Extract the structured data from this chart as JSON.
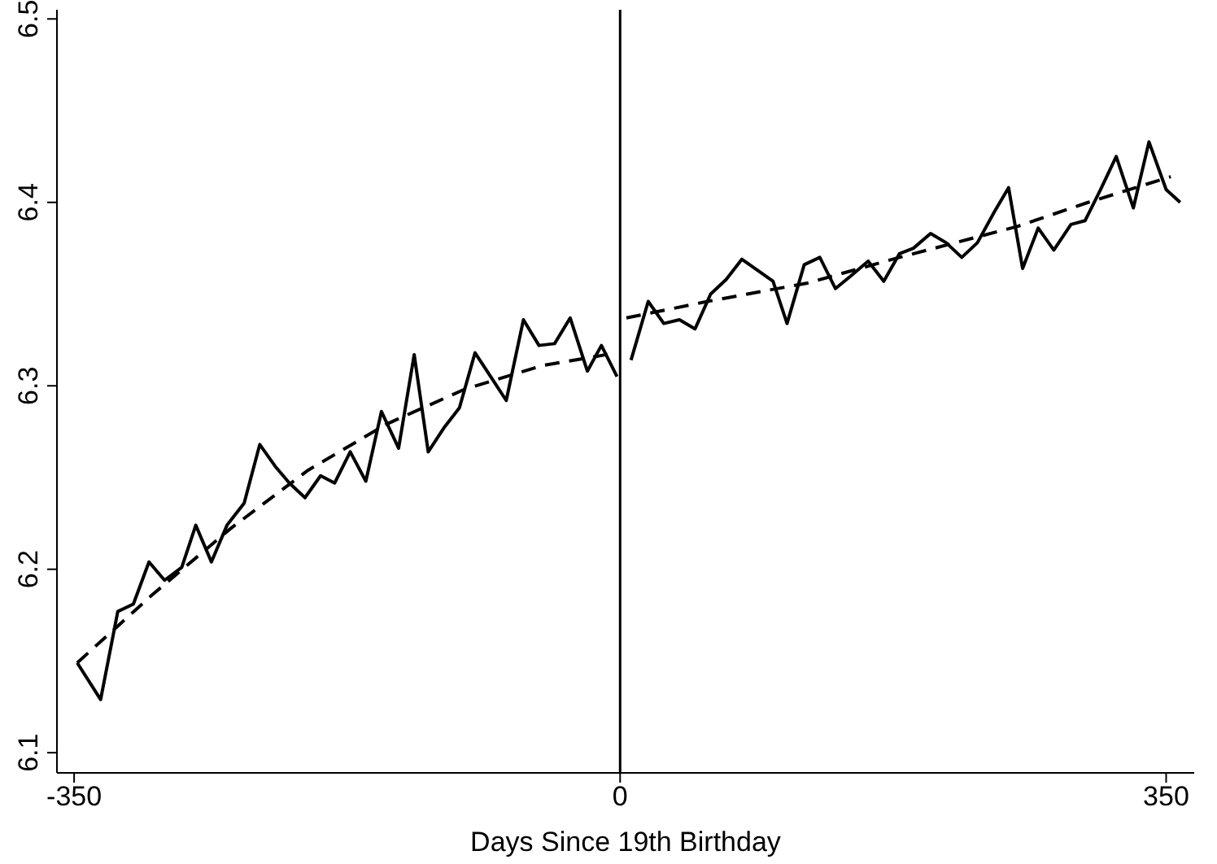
{
  "chart_data": {
    "type": "line",
    "xlabel": "Days Since 19th Birthday",
    "xlim": [
      -361,
      368
    ],
    "ylim": [
      6.089,
      6.505
    ],
    "xticks": [
      -350,
      0,
      350
    ],
    "yticks": [
      6.1,
      6.2,
      6.3,
      6.4,
      6.5
    ],
    "grid": false,
    "marker": "none",
    "ref_lines": [
      {
        "axis": "x",
        "value": 0,
        "color": "#000000",
        "line_style": "solid"
      }
    ],
    "series": [
      {
        "color": "#000000",
        "line_style": "solid",
        "x": [
          -348,
          -333,
          -322,
          -312,
          -302,
          -292,
          -281,
          -272,
          -262,
          -252,
          -241,
          -231,
          -221,
          -212,
          -202,
          -192,
          -183,
          -173,
          -163,
          -153,
          -142,
          -132,
          -123,
          -113,
          -103,
          -93,
          -83,
          -73,
          -62,
          -52,
          -42,
          -32,
          -21,
          -12,
          -2
        ],
        "values": [
          6.149,
          6.129,
          6.177,
          6.181,
          6.204,
          6.194,
          6.201,
          6.224,
          6.204,
          6.224,
          6.236,
          6.268,
          6.256,
          6.247,
          6.239,
          6.251,
          6.247,
          6.264,
          6.248,
          6.286,
          6.266,
          6.317,
          6.264,
          6.277,
          6.288,
          6.318,
          6.305,
          6.292,
          6.336,
          6.322,
          6.323,
          6.337,
          6.308,
          6.322,
          6.305
        ]
      },
      {
        "color": "#000000",
        "line_style": "solid",
        "x": [
          7,
          18,
          28,
          38,
          48,
          58,
          68,
          78,
          88,
          98,
          107,
          118,
          128,
          138,
          148,
          159,
          169,
          179,
          188,
          199,
          209,
          219,
          229,
          240,
          249,
          258,
          268,
          278,
          289,
          298,
          308,
          318,
          329,
          339,
          350,
          359
        ],
        "values": [
          6.314,
          6.346,
          6.334,
          6.336,
          6.331,
          6.35,
          6.358,
          6.369,
          6.363,
          6.357,
          6.334,
          6.366,
          6.37,
          6.353,
          6.36,
          6.368,
          6.357,
          6.372,
          6.375,
          6.383,
          6.378,
          6.37,
          6.378,
          6.395,
          6.408,
          6.364,
          6.386,
          6.374,
          6.388,
          6.39,
          6.407,
          6.425,
          6.397,
          6.433,
          6.407,
          6.4
        ]
      },
      {
        "color": "#000000",
        "line_style": "dashed",
        "x": [
          -348,
          -300,
          -250,
          -200,
          -150,
          -100,
          -50,
          -2
        ],
        "values": [
          6.149,
          6.186,
          6.222,
          6.254,
          6.279,
          6.298,
          6.311,
          6.318
        ]
      },
      {
        "color": "#000000",
        "line_style": "dashed",
        "x": [
          4,
          56,
          120,
          179,
          255,
          300,
          353
        ],
        "values": [
          6.337,
          6.346,
          6.356,
          6.37,
          6.387,
          6.4,
          6.414
        ]
      }
    ]
  }
}
